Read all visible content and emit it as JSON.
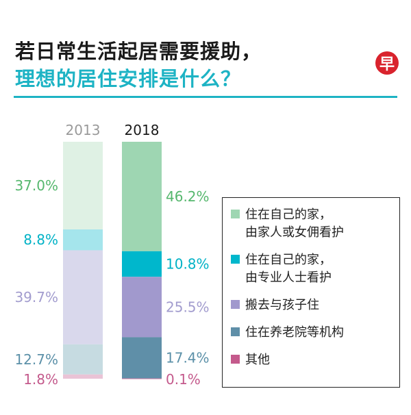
{
  "title_line1": "若日常生活起居需要援助，",
  "title_line2": "理想的居住安排是什么？",
  "logo_text": "早",
  "colors": {
    "accent": "#1db3c4",
    "logo": "#d9232d"
  },
  "chart_data": {
    "type": "bar",
    "stacked": true,
    "categories": [
      "2013",
      "2018"
    ],
    "series": [
      {
        "name": "住在自己的家，\n由家人或女佣看护",
        "values": [
          37.0,
          46.2
        ],
        "labels": [
          "37.0%",
          "46.2%"
        ],
        "color": "#9ed6b2",
        "faded_color": "#dff1e4"
      },
      {
        "name": "住在自己的家，\n由专业人士看护",
        "values": [
          8.8,
          10.8
        ],
        "labels": [
          "8.8%",
          "10.8%"
        ],
        "color": "#00b7cc",
        "faded_color": "#a5e5ec"
      },
      {
        "name": "搬去与孩子住",
        "values": [
          39.7,
          25.5
        ],
        "labels": [
          "39.7%",
          "25.5%"
        ],
        "color": "#a199cd",
        "faded_color": "#d9d8ec"
      },
      {
        "name": "住在养老院等机构",
        "values": [
          12.7,
          17.4
        ],
        "labels": [
          "12.7%",
          "17.4%"
        ],
        "color": "#5f8fa8",
        "faded_color": "#c6dbe1"
      },
      {
        "name": "其他",
        "values": [
          1.8,
          0.1
        ],
        "labels": [
          "1.8%",
          "0.1%"
        ],
        "color": "#c45a8c",
        "faded_color": "#eac3d6"
      }
    ],
    "label_colors": [
      "#55b76d",
      "#00b2c6",
      "#a29cce",
      "#5b90a8",
      "#c45a8c"
    ],
    "year_label_colors": [
      "#9a9a9a",
      "#1a1a1a"
    ],
    "ylim": [
      0,
      100
    ],
    "legend_position": "right"
  }
}
